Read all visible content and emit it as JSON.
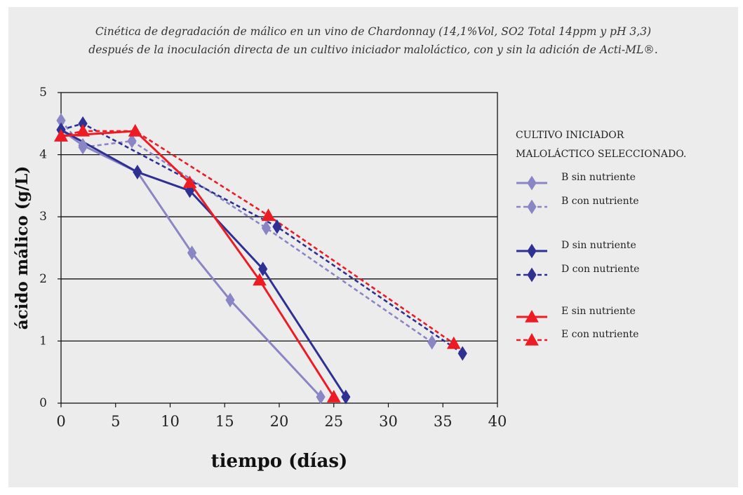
{
  "chart_data": {
    "type": "line",
    "title_line1": "Cinética de degradación de málico en un vino de Chardonnay (14,1%Vol, SO2 Total 14ppm y pH 3,3)",
    "title_line2": "después de la inoculación directa de un cultivo iniciador maloláctico, con y sin la adición de Acti-ML®.",
    "xlabel": "tiempo (días)",
    "ylabel": "ácido málico (g/L)",
    "xlim": [
      0,
      40
    ],
    "ylim": [
      0,
      5
    ],
    "xticks": [
      "0",
      "5",
      "10",
      "15",
      "20",
      "25",
      "30",
      "35",
      "40"
    ],
    "yticks": [
      "0",
      "1",
      "2",
      "3",
      "4",
      "5"
    ],
    "grid": "horizontal",
    "legend_position": "right",
    "legend_title_line1": "CULTIVO INICIADOR",
    "legend_title_line2": "MALOLÁCTICO SELECCIONADO.",
    "series": [
      {
        "name": "B sin nutriente",
        "color": "#8a85c4",
        "dash": false,
        "marker": "diamond",
        "x": [
          0,
          2,
          7,
          12,
          15.5,
          23.8
        ],
        "y": [
          4.4,
          4.15,
          3.72,
          2.42,
          1.66,
          0.1
        ]
      },
      {
        "name": "B con nutriente",
        "color": "#8a85c4",
        "dash": true,
        "marker": "diamond",
        "x": [
          0,
          2,
          6.5,
          18.8,
          34
        ],
        "y": [
          4.55,
          4.12,
          4.22,
          2.82,
          0.98
        ]
      },
      {
        "name": "D sin nutriente",
        "color": "#2e3192",
        "dash": false,
        "marker": "diamond",
        "x": [
          0,
          7,
          11.8,
          18.5,
          26.1
        ],
        "y": [
          4.4,
          3.72,
          3.42,
          2.16,
          0.1
        ]
      },
      {
        "name": "D con nutriente",
        "color": "#2e3192",
        "dash": true,
        "marker": "diamond",
        "x": [
          0,
          2,
          19.8,
          36.8
        ],
        "y": [
          4.4,
          4.5,
          2.84,
          0.8
        ]
      },
      {
        "name": "E sin nutriente",
        "color": "#ed1c24",
        "dash": false,
        "marker": "triangle",
        "x": [
          0,
          6.8,
          11.8,
          18.2,
          25
        ],
        "y": [
          4.3,
          4.38,
          3.55,
          1.98,
          0.1
        ]
      },
      {
        "name": "E con nutriente",
        "color": "#ed1c24",
        "dash": true,
        "marker": "triangle",
        "x": [
          0,
          2,
          6.8,
          19,
          36
        ],
        "y": [
          4.3,
          4.38,
          4.38,
          3.02,
          0.96
        ]
      }
    ]
  }
}
